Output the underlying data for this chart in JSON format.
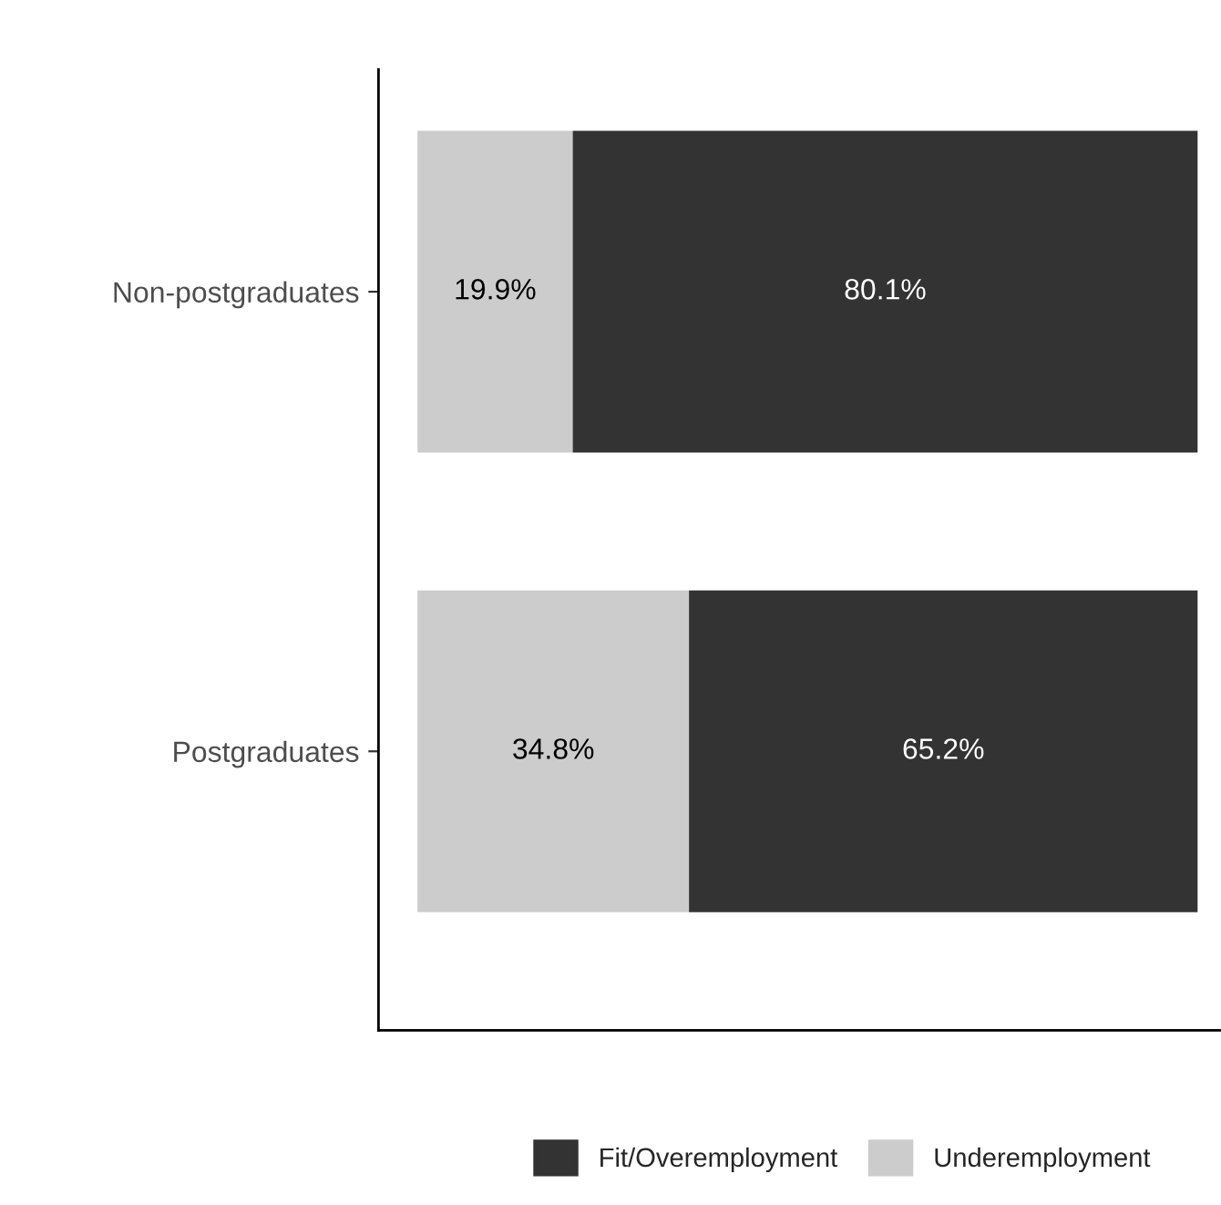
{
  "chart_data": {
    "type": "bar",
    "orientation": "horizontal",
    "stacked": true,
    "categories": [
      "Non-postgraduates",
      "Postgraduates"
    ],
    "series": [
      {
        "name": "Underemployment",
        "color": "#cccccc",
        "values": [
          19.9,
          34.8
        ],
        "value_labels": [
          "19.9%",
          "34.8%"
        ]
      },
      {
        "name": "Fit/Overemployment",
        "color": "#333333",
        "values": [
          80.1,
          65.2
        ],
        "value_labels": [
          "80.1%",
          "65.2%"
        ]
      }
    ],
    "xlim": [
      -5,
      103
    ],
    "tick_labels": "y",
    "legend": "bottom",
    "grid": false
  }
}
